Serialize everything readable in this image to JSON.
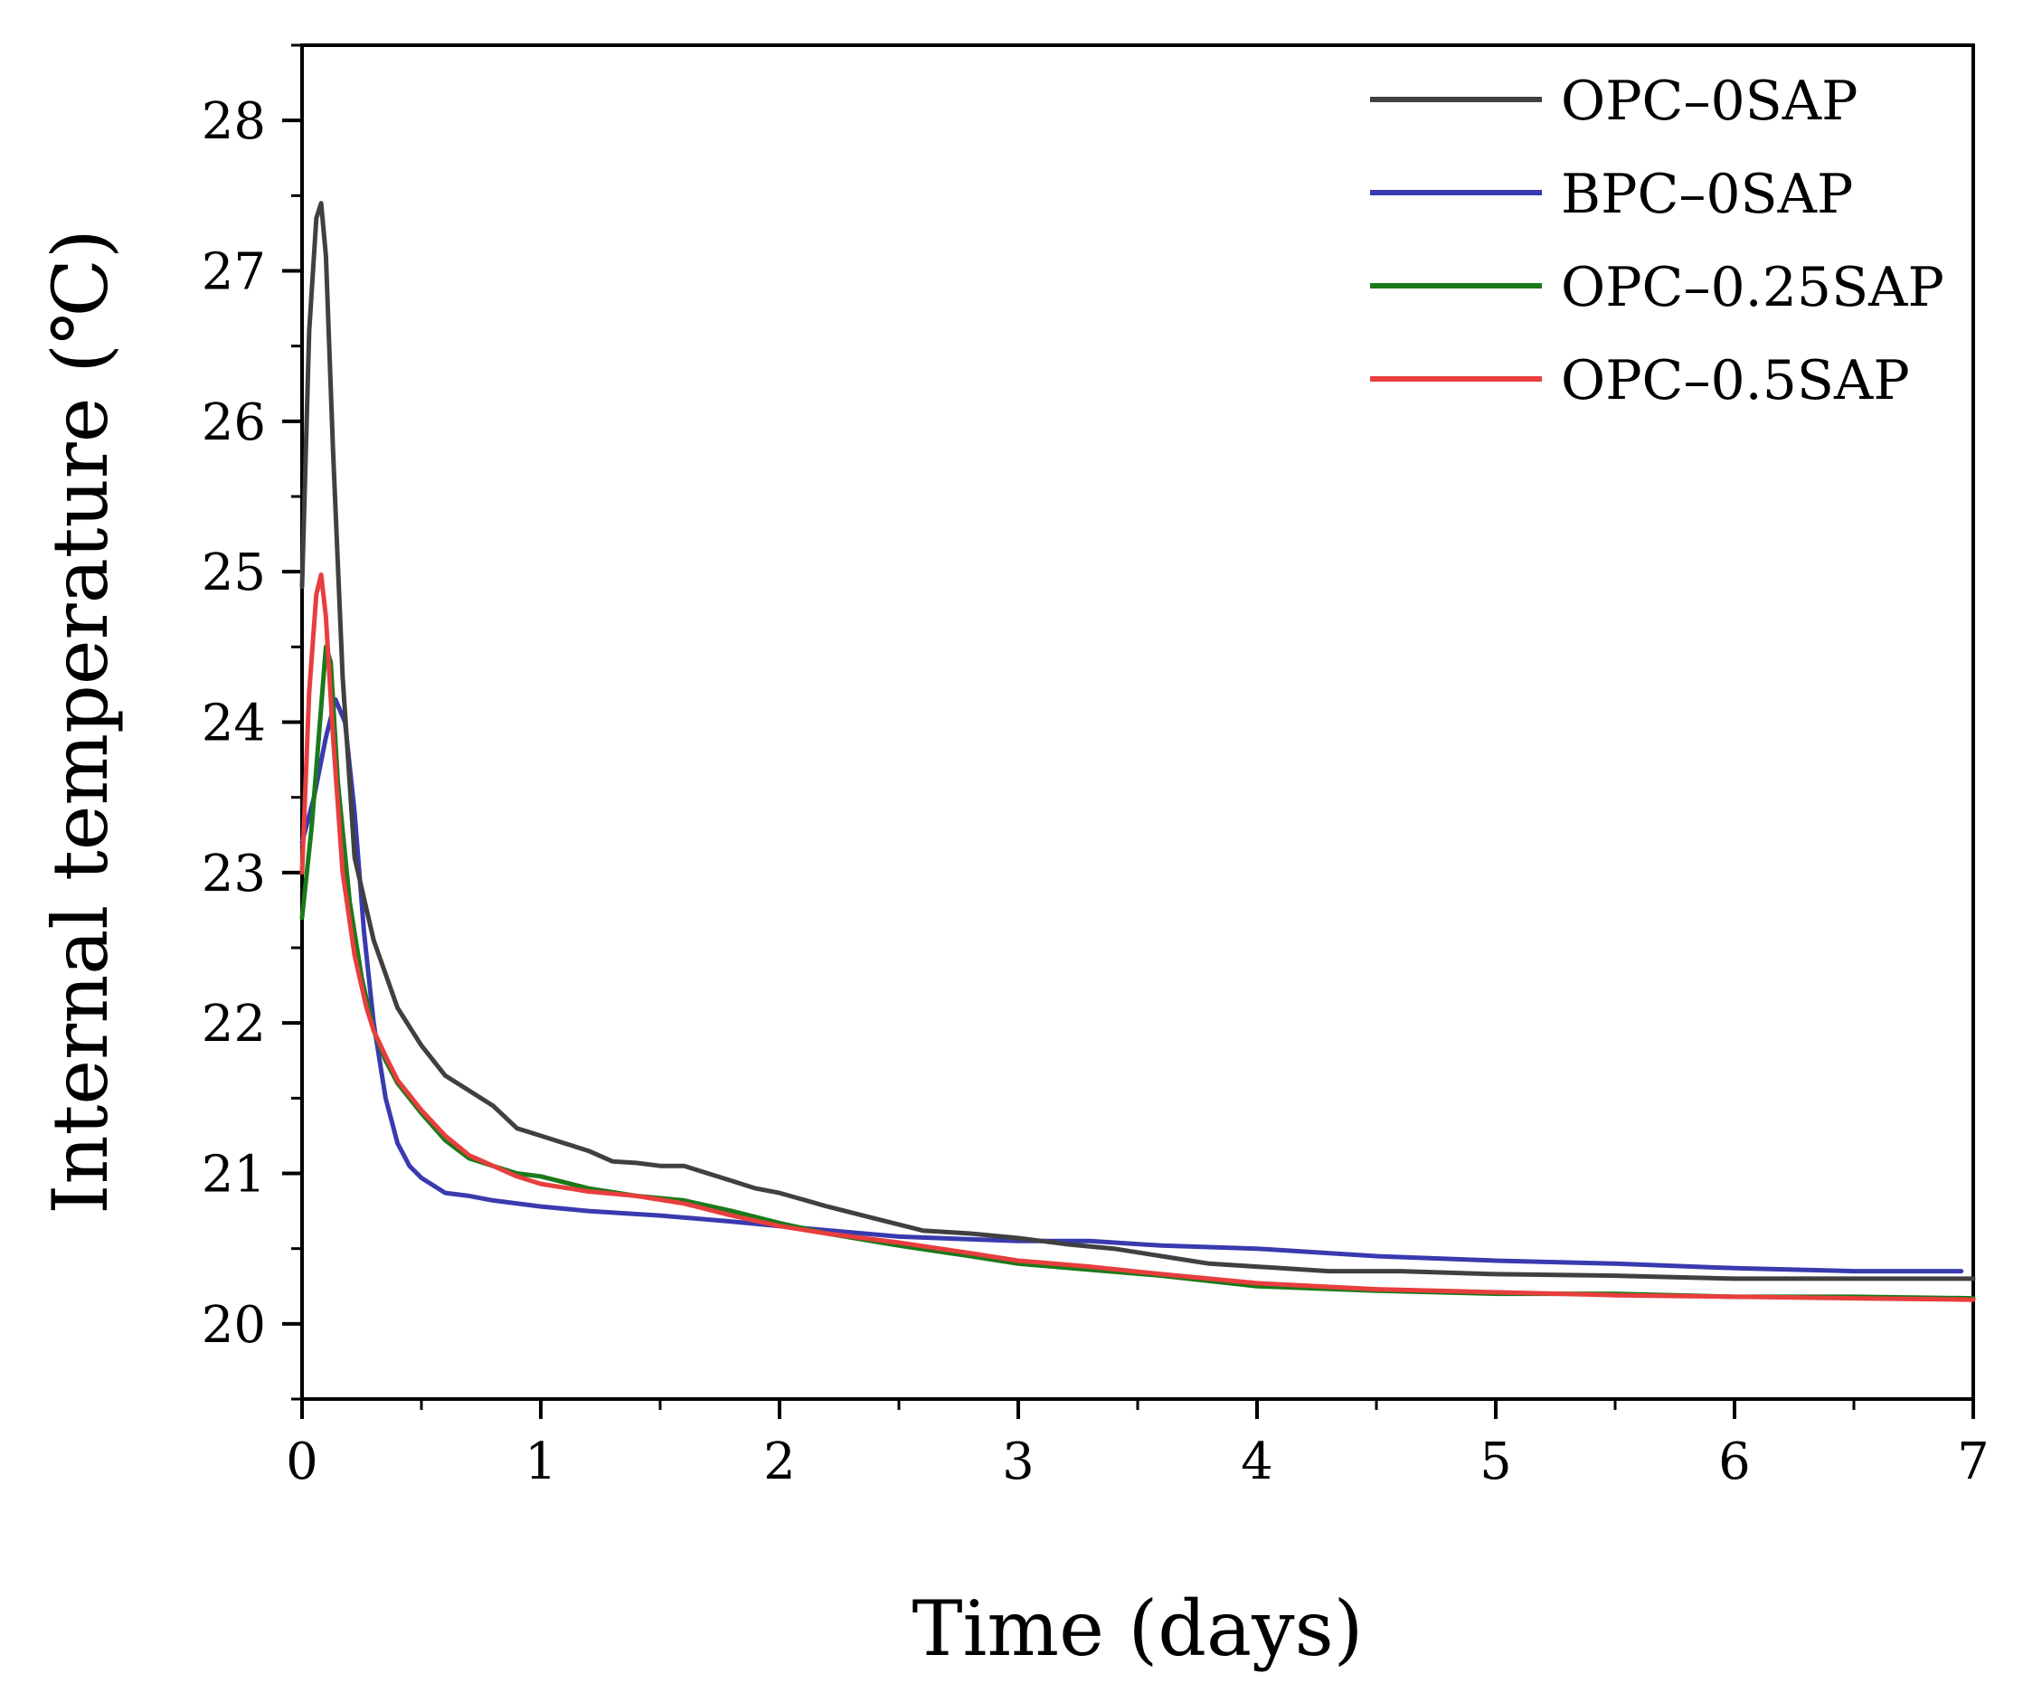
{
  "chart_data": {
    "type": "line",
    "xlabel": "Time (days)",
    "ylabel": "Internal temperature (℃)",
    "xlim": [
      0,
      7
    ],
    "ylim": [
      19.5,
      28.5
    ],
    "xticks": [
      0,
      1,
      2,
      3,
      4,
      5,
      6,
      7
    ],
    "yticks": [
      20,
      21,
      22,
      23,
      24,
      25,
      26,
      27,
      28
    ],
    "xtick_labels": [
      "0",
      "1",
      "2",
      "3",
      "4",
      "5",
      "6",
      "7"
    ],
    "ytick_labels": [
      "20",
      "21",
      "22",
      "23",
      "24",
      "25",
      "26",
      "27",
      "28"
    ],
    "grid": false,
    "legend_position": "top-right",
    "series": [
      {
        "name": "OPC–0SAP",
        "color": "#404040",
        "x": [
          0,
          0.03,
          0.06,
          0.08,
          0.1,
          0.13,
          0.17,
          0.22,
          0.3,
          0.4,
          0.5,
          0.6,
          0.7,
          0.8,
          0.9,
          1.0,
          1.1,
          1.2,
          1.3,
          1.4,
          1.5,
          1.6,
          1.7,
          1.8,
          1.9,
          2.0,
          2.2,
          2.4,
          2.6,
          2.8,
          3.0,
          3.2,
          3.4,
          3.6,
          3.8,
          4.0,
          4.3,
          4.6,
          5.0,
          5.5,
          6.0,
          6.5,
          7.0
        ],
        "y": [
          24.9,
          26.6,
          27.35,
          27.45,
          27.1,
          25.8,
          24.3,
          23.1,
          22.55,
          22.1,
          21.85,
          21.65,
          21.55,
          21.45,
          21.3,
          21.25,
          21.2,
          21.15,
          21.08,
          21.07,
          21.05,
          21.05,
          21.0,
          20.95,
          20.9,
          20.87,
          20.78,
          20.7,
          20.62,
          20.6,
          20.57,
          20.53,
          20.5,
          20.45,
          20.4,
          20.38,
          20.35,
          20.35,
          20.33,
          20.32,
          20.3,
          20.3,
          20.3
        ]
      },
      {
        "name": "BPC–0SAP",
        "color": "#3a3ab0",
        "x": [
          0,
          0.05,
          0.1,
          0.14,
          0.18,
          0.22,
          0.26,
          0.3,
          0.35,
          0.4,
          0.45,
          0.5,
          0.6,
          0.7,
          0.8,
          1.0,
          1.2,
          1.5,
          1.8,
          2.0,
          2.5,
          3.0,
          3.3,
          3.6,
          4.0,
          4.5,
          5.0,
          5.5,
          6.0,
          6.5,
          6.95
        ],
        "y": [
          23.2,
          23.5,
          23.9,
          24.15,
          24.0,
          23.4,
          22.6,
          22.0,
          21.5,
          21.2,
          21.05,
          20.97,
          20.87,
          20.85,
          20.82,
          20.78,
          20.75,
          20.72,
          20.68,
          20.65,
          20.58,
          20.55,
          20.55,
          20.52,
          20.5,
          20.45,
          20.42,
          20.4,
          20.37,
          20.35,
          20.35
        ]
      },
      {
        "name": "OPC–0.25SAP",
        "color": "#1a7a1a",
        "x": [
          0,
          0.04,
          0.07,
          0.1,
          0.12,
          0.15,
          0.2,
          0.25,
          0.3,
          0.35,
          0.4,
          0.5,
          0.6,
          0.7,
          0.8,
          0.9,
          1.0,
          1.2,
          1.4,
          1.6,
          1.8,
          2.0,
          2.2,
          2.5,
          2.8,
          3.0,
          3.3,
          3.6,
          4.0,
          4.5,
          5.0,
          5.5,
          6.0,
          6.5,
          7.0
        ],
        "y": [
          22.7,
          23.3,
          23.9,
          24.5,
          24.4,
          23.6,
          22.8,
          22.3,
          21.95,
          21.75,
          21.6,
          21.4,
          21.22,
          21.1,
          21.05,
          21.0,
          20.98,
          20.9,
          20.85,
          20.82,
          20.75,
          20.67,
          20.6,
          20.52,
          20.45,
          20.4,
          20.36,
          20.32,
          20.25,
          20.22,
          20.2,
          20.2,
          20.18,
          20.18,
          20.17
        ]
      },
      {
        "name": "OPC–0.5SAP",
        "color": "#e83e3e",
        "x": [
          0,
          0.03,
          0.06,
          0.08,
          0.1,
          0.13,
          0.17,
          0.22,
          0.27,
          0.3,
          0.35,
          0.4,
          0.5,
          0.6,
          0.7,
          0.8,
          0.9,
          1.0,
          1.2,
          1.4,
          1.6,
          1.8,
          2.0,
          2.2,
          2.5,
          2.8,
          3.0,
          3.3,
          3.6,
          4.0,
          4.5,
          5.0,
          5.5,
          6.0,
          6.5,
          7.0
        ],
        "y": [
          23.0,
          24.2,
          24.85,
          24.98,
          24.7,
          23.9,
          23.0,
          22.45,
          22.1,
          21.95,
          21.78,
          21.62,
          21.42,
          21.25,
          21.12,
          21.05,
          20.98,
          20.93,
          20.88,
          20.85,
          20.8,
          20.72,
          20.65,
          20.6,
          20.54,
          20.47,
          20.42,
          20.38,
          20.33,
          20.27,
          20.23,
          20.21,
          20.19,
          20.18,
          20.17,
          20.16
        ]
      }
    ]
  }
}
